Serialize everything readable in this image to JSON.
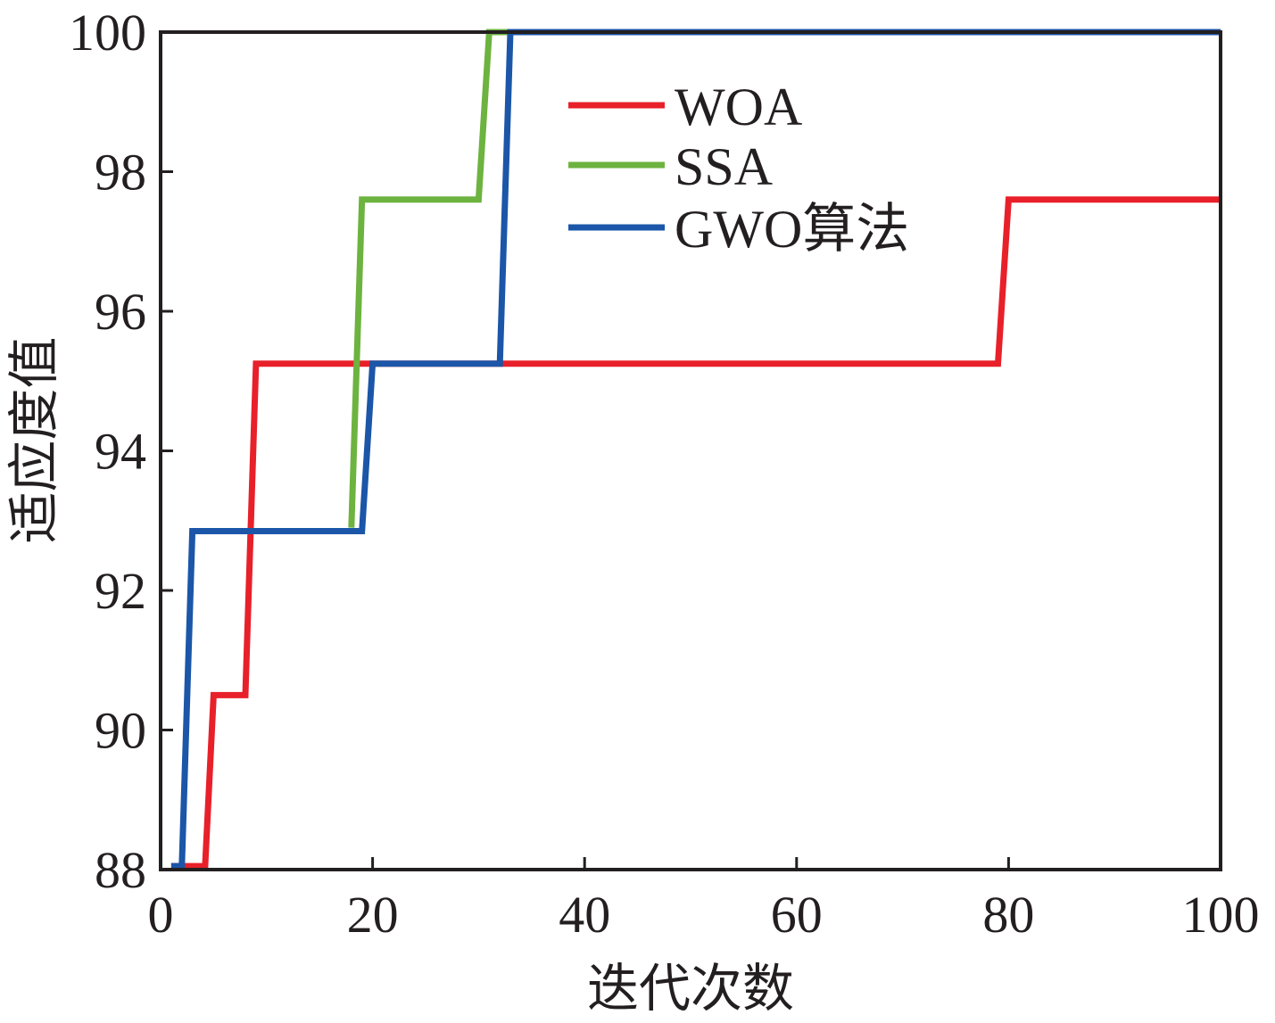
{
  "chart_data": {
    "type": "line",
    "xlabel": "迭代次数",
    "ylabel": "适应度值",
    "xlim": [
      0,
      100
    ],
    "ylim": [
      88,
      100
    ],
    "xticks": [
      "0",
      "20",
      "40",
      "60",
      "80",
      "100"
    ],
    "yticks": [
      "88",
      "90",
      "92",
      "94",
      "96",
      "98",
      "100"
    ],
    "grid": false,
    "legend_position": "top-right",
    "series": [
      {
        "name": "WOA",
        "color": "#e8202a",
        "points": [
          [
            1,
            88.05
          ],
          [
            4.2,
            88.05
          ],
          [
            5,
            90.5
          ],
          [
            8,
            90.5
          ],
          [
            9,
            95.25
          ],
          [
            79,
            95.25
          ],
          [
            80,
            97.6
          ],
          [
            100,
            97.6
          ]
        ]
      },
      {
        "name": "SSA",
        "color": "#6db33f",
        "points": [
          [
            18,
            92.9
          ],
          [
            19,
            97.6
          ],
          [
            30,
            97.6
          ],
          [
            31,
            100
          ],
          [
            100,
            100
          ]
        ]
      },
      {
        "name": "GWO算法",
        "color": "#1b56a8",
        "points": [
          [
            1,
            88.05
          ],
          [
            2,
            88.05
          ],
          [
            3,
            92.85
          ],
          [
            19,
            92.85
          ],
          [
            20,
            95.25
          ],
          [
            32,
            95.25
          ],
          [
            33,
            100
          ],
          [
            100,
            100
          ]
        ]
      }
    ]
  }
}
